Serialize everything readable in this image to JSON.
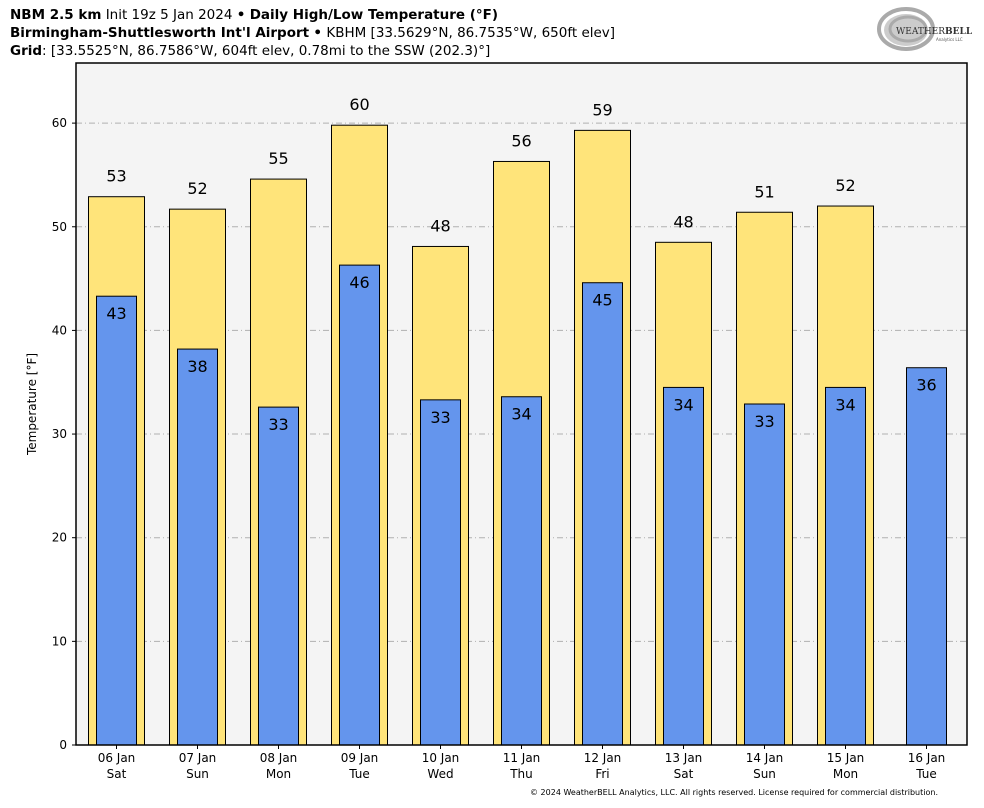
{
  "header": {
    "model": "NBM 2.5 km",
    "init": "Init 19z 5 Jan 2024",
    "product": "Daily High/Low Temperature (°F)",
    "station_name": "Birmingham-Shuttlesworth Int'l Airport",
    "station_info": "KBHM [33.5629°N, 86.7535°W, 650ft elev]",
    "grid_label": "Grid",
    "grid_info": ": [33.5525°N, 86.7586°W, 604ft elev, 0.78mi to the SSW (202.3)°]",
    "separator": "•"
  },
  "logo": {
    "text": "WeatherBELL",
    "subtext": "Analytics LLC"
  },
  "footer": "© 2024 WeatherBELL Analytics, LLC. All rights reserved. License required for commercial distribution.",
  "chart_data": {
    "type": "bar",
    "ylabel": "Temperature [°F]",
    "ylim": [
      0,
      65.8
    ],
    "yticks": [
      0,
      10,
      20,
      30,
      40,
      50,
      60
    ],
    "grid": true,
    "categories": [
      [
        "06 Jan",
        "Sat"
      ],
      [
        "07 Jan",
        "Sun"
      ],
      [
        "08 Jan",
        "Mon"
      ],
      [
        "09 Jan",
        "Tue"
      ],
      [
        "10 Jan",
        "Wed"
      ],
      [
        "11 Jan",
        "Thu"
      ],
      [
        "12 Jan",
        "Fri"
      ],
      [
        "13 Jan",
        "Sat"
      ],
      [
        "14 Jan",
        "Sun"
      ],
      [
        "15 Jan",
        "Mon"
      ],
      [
        "16 Jan",
        "Tue"
      ]
    ],
    "series": [
      {
        "values": [
          52.9,
          51.7,
          54.6,
          59.8,
          48.1,
          56.3,
          59.3,
          48.5,
          51.4,
          52.0,
          null
        ],
        "labels": [
          "53",
          "52",
          "55",
          "60",
          "48",
          "56",
          "59",
          "48",
          "51",
          "52",
          ""
        ],
        "color": "#ffe47a"
      },
      {
        "values": [
          43.3,
          38.2,
          32.6,
          46.3,
          33.3,
          33.6,
          44.6,
          34.5,
          32.9,
          34.5,
          36.4
        ],
        "labels": [
          "43",
          "38",
          "33",
          "46",
          "33",
          "34",
          "45",
          "34",
          "33",
          "34",
          "36"
        ],
        "color": "#6495ed"
      }
    ],
    "background": "#f4f4f4"
  }
}
